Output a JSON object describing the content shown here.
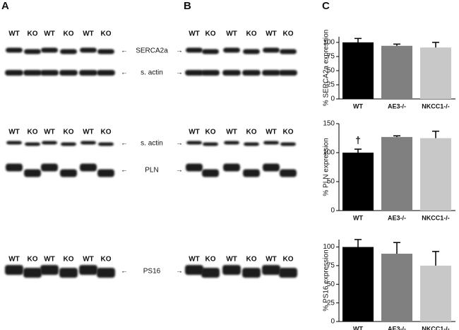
{
  "panel_labels": [
    "A",
    "B",
    "C"
  ],
  "blots": {
    "lanes": [
      "WT",
      "KO",
      "WT",
      "KO",
      "WT",
      "KO"
    ],
    "rows": [
      "SERCA2a",
      "s. actin",
      "s. actin",
      "PLN",
      "PS16"
    ]
  },
  "chart_data": [
    {
      "type": "bar",
      "y_label": "% SERCA2a expression",
      "categories": [
        "WT",
        "AE3-/-",
        "NKCC1-/-"
      ],
      "values": [
        100,
        94,
        91
      ],
      "errors": [
        7,
        3,
        9
      ],
      "colors": [
        "#000000",
        "#808080",
        "#c8c8c8"
      ],
      "ylim": [
        0,
        110
      ],
      "yticks": [
        0,
        25,
        50,
        75,
        100
      ]
    },
    {
      "type": "bar",
      "y_label": "% PLN expression",
      "categories": [
        "WT",
        "AE3-/-",
        "NKCC1-/-"
      ],
      "values": [
        100,
        127,
        125
      ],
      "errors": [
        6,
        2,
        12
      ],
      "colors": [
        "#000000",
        "#808080",
        "#c8c8c8"
      ],
      "ylim": [
        0,
        150
      ],
      "yticks": [
        0,
        50,
        100,
        150
      ],
      "annotations": [
        "†",
        null,
        null
      ]
    },
    {
      "type": "bar",
      "y_label": "% PS16 expression",
      "categories": [
        "WT",
        "AE3-/-",
        "NKCC1-/-"
      ],
      "values": [
        100,
        91,
        75
      ],
      "errors": [
        10,
        15,
        19
      ],
      "colors": [
        "#000000",
        "#808080",
        "#c8c8c8"
      ],
      "ylim": [
        0,
        110
      ],
      "yticks": [
        0,
        25,
        50,
        75,
        100
      ]
    }
  ]
}
